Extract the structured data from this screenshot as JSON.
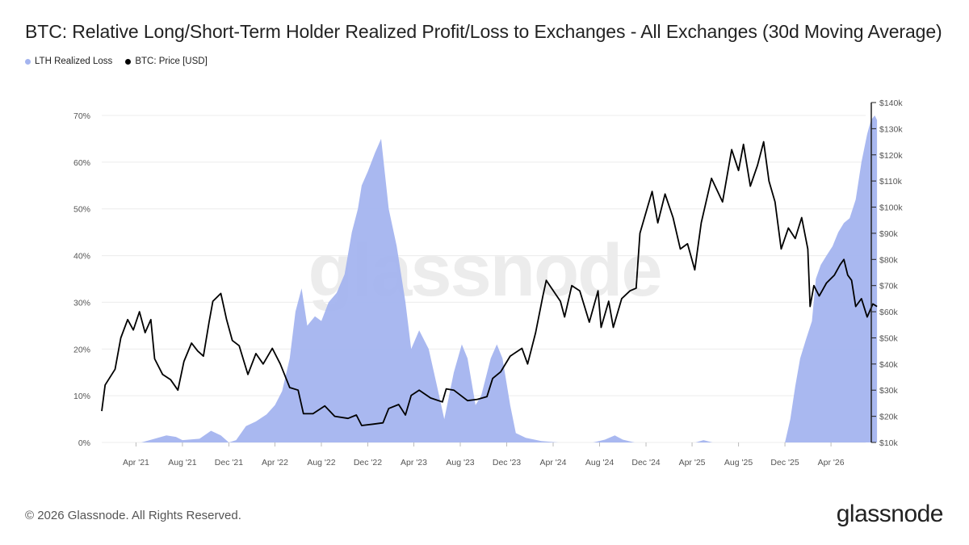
{
  "title": "BTC: Relative Long/Short-Term Holder Realized Profit/Loss to Exchanges - All Exchanges (30d Moving Average)",
  "footer": "© 2026 Glassnode. All Rights Reserved.",
  "brand": "glassnode",
  "watermark": "glassnode",
  "colors": {
    "loss_area": "#a4b4ef",
    "price_line": "#000000",
    "axis": "#222222"
  },
  "chart_data": {
    "type": "area",
    "legend": [
      {
        "name": "LTH Realized Loss",
        "color": "#a4b4ef",
        "marker": "dot"
      },
      {
        "name": "BTC: Price [USD]",
        "color": "#000000",
        "marker": "dot"
      }
    ],
    "legend_position": "top-left",
    "grid": true,
    "x_ticks": [
      "Apr '21",
      "Aug '21",
      "Dec '21",
      "Apr '22",
      "Aug '22",
      "Dec '22",
      "Apr '23",
      "Aug '23",
      "Dec '23",
      "Apr '24",
      "Aug '24",
      "Dec '24",
      "Apr '25",
      "Aug '25",
      "Dec '25",
      "Apr '26"
    ],
    "x_range": [
      "2021-01",
      "2026-07"
    ],
    "y_left": {
      "ticks": [
        "0%",
        "10%",
        "20%",
        "30%",
        "40%",
        "50%",
        "60%",
        "70%"
      ],
      "range": [
        0,
        70
      ],
      "unit": "%"
    },
    "y_right": {
      "ticks": [
        "$10k",
        "$20k",
        "$30k",
        "$40k",
        "$50k",
        "$60k",
        "$70k",
        "$80k",
        "$90k",
        "$100k",
        "$110k",
        "$120k",
        "$130k",
        "$140k"
      ],
      "range": [
        10000,
        140000
      ],
      "unit": "USD"
    },
    "series": [
      {
        "name": "LTH Realized Loss",
        "axis": "left",
        "kind": "area",
        "points": [
          [
            "2021-01-01",
            0
          ],
          [
            "2021-04-15",
            0
          ],
          [
            "2021-05-20",
            0.8
          ],
          [
            "2021-06-20",
            1.5
          ],
          [
            "2021-07-15",
            1.2
          ],
          [
            "2021-08-01",
            0.5
          ],
          [
            "2021-09-15",
            0.8
          ],
          [
            "2021-10-15",
            2.5
          ],
          [
            "2021-11-10",
            1.5
          ],
          [
            "2021-12-01",
            0
          ],
          [
            "2021-12-20",
            0.5
          ],
          [
            "2022-01-15",
            3.5
          ],
          [
            "2022-02-10",
            4.5
          ],
          [
            "2022-03-10",
            6
          ],
          [
            "2022-04-01",
            8
          ],
          [
            "2022-04-20",
            11
          ],
          [
            "2022-05-10",
            18
          ],
          [
            "2022-05-25",
            28
          ],
          [
            "2022-06-10",
            33
          ],
          [
            "2022-06-25",
            25
          ],
          [
            "2022-07-15",
            27
          ],
          [
            "2022-08-01",
            26
          ],
          [
            "2022-08-20",
            30
          ],
          [
            "2022-09-10",
            32
          ],
          [
            "2022-10-01",
            36
          ],
          [
            "2022-10-20",
            45
          ],
          [
            "2022-11-05",
            50
          ],
          [
            "2022-11-15",
            55
          ],
          [
            "2022-12-01",
            58
          ],
          [
            "2022-12-20",
            62
          ],
          [
            "2023-01-05",
            65
          ],
          [
            "2023-01-25",
            50
          ],
          [
            "2023-02-15",
            42
          ],
          [
            "2023-03-10",
            30
          ],
          [
            "2023-03-25",
            20
          ],
          [
            "2023-04-15",
            24
          ],
          [
            "2023-05-10",
            20
          ],
          [
            "2023-06-01",
            12
          ],
          [
            "2023-06-20",
            5
          ],
          [
            "2023-07-15",
            15
          ],
          [
            "2023-08-05",
            21
          ],
          [
            "2023-08-20",
            18
          ],
          [
            "2023-09-10",
            8
          ],
          [
            "2023-09-25",
            10
          ],
          [
            "2023-10-20",
            18
          ],
          [
            "2023-11-05",
            21
          ],
          [
            "2023-11-20",
            18
          ],
          [
            "2023-12-10",
            8
          ],
          [
            "2023-12-25",
            2
          ],
          [
            "2024-01-20",
            1
          ],
          [
            "2024-03-01",
            0.3
          ],
          [
            "2024-04-15",
            0
          ],
          [
            "2024-07-15",
            0
          ],
          [
            "2024-08-15",
            0.6
          ],
          [
            "2024-09-10",
            1.5
          ],
          [
            "2024-10-01",
            0.6
          ],
          [
            "2024-11-01",
            0
          ],
          [
            "2025-04-10",
            0
          ],
          [
            "2025-05-01",
            0.5
          ],
          [
            "2025-05-25",
            0
          ],
          [
            "2025-12-01",
            0
          ],
          [
            "2025-12-15",
            5
          ],
          [
            "2025-12-28",
            12
          ],
          [
            "2026-01-10",
            18
          ],
          [
            "2026-01-25",
            22
          ],
          [
            "2026-02-10",
            26
          ],
          [
            "2026-02-20",
            35
          ],
          [
            "2026-03-05",
            38
          ],
          [
            "2026-03-20",
            40
          ],
          [
            "2026-04-05",
            42
          ],
          [
            "2026-04-20",
            45
          ],
          [
            "2026-05-05",
            47
          ],
          [
            "2026-05-20",
            48
          ],
          [
            "2026-06-05",
            52
          ],
          [
            "2026-06-20",
            60
          ],
          [
            "2026-07-05",
            66
          ],
          [
            "2026-07-15",
            69
          ],
          [
            "2026-07-25",
            70
          ],
          [
            "2026-07-31",
            69
          ]
        ]
      },
      {
        "name": "BTC: Price [USD]",
        "axis": "right",
        "kind": "line",
        "points": [
          [
            "2021-01-01",
            22000
          ],
          [
            "2021-01-10",
            32000
          ],
          [
            "2021-02-05",
            38000
          ],
          [
            "2021-02-20",
            50000
          ],
          [
            "2021-03-10",
            57000
          ],
          [
            "2021-03-25",
            53000
          ],
          [
            "2021-04-10",
            60000
          ],
          [
            "2021-04-25",
            52000
          ],
          [
            "2021-05-10",
            57000
          ],
          [
            "2021-05-20",
            42000
          ],
          [
            "2021-06-10",
            36000
          ],
          [
            "2021-07-01",
            34000
          ],
          [
            "2021-07-20",
            30000
          ],
          [
            "2021-08-05",
            41000
          ],
          [
            "2021-08-25",
            48000
          ],
          [
            "2021-09-10",
            45000
          ],
          [
            "2021-09-25",
            43000
          ],
          [
            "2021-10-10",
            56000
          ],
          [
            "2021-10-20",
            64000
          ],
          [
            "2021-11-10",
            67000
          ],
          [
            "2021-11-25",
            57000
          ],
          [
            "2021-12-10",
            49000
          ],
          [
            "2021-12-28",
            47000
          ],
          [
            "2022-01-20",
            36000
          ],
          [
            "2022-02-10",
            44000
          ],
          [
            "2022-03-01",
            40000
          ],
          [
            "2022-03-25",
            46000
          ],
          [
            "2022-04-15",
            40000
          ],
          [
            "2022-05-10",
            31000
          ],
          [
            "2022-06-01",
            30000
          ],
          [
            "2022-06-15",
            21000
          ],
          [
            "2022-07-10",
            21000
          ],
          [
            "2022-08-10",
            24000
          ],
          [
            "2022-09-05",
            20000
          ],
          [
            "2022-10-10",
            19200
          ],
          [
            "2022-11-01",
            20500
          ],
          [
            "2022-11-15",
            16500
          ],
          [
            "2022-12-15",
            17000
          ],
          [
            "2023-01-10",
            17500
          ],
          [
            "2023-01-25",
            23000
          ],
          [
            "2023-02-20",
            24500
          ],
          [
            "2023-03-10",
            20500
          ],
          [
            "2023-03-25",
            28000
          ],
          [
            "2023-04-15",
            30000
          ],
          [
            "2023-05-15",
            27000
          ],
          [
            "2023-06-15",
            25500
          ],
          [
            "2023-06-25",
            30500
          ],
          [
            "2023-07-15",
            30000
          ],
          [
            "2023-08-20",
            26000
          ],
          [
            "2023-09-15",
            26500
          ],
          [
            "2023-10-10",
            27500
          ],
          [
            "2023-10-25",
            34500
          ],
          [
            "2023-11-15",
            37000
          ],
          [
            "2023-12-10",
            43000
          ],
          [
            "2024-01-10",
            46000
          ],
          [
            "2024-01-25",
            40000
          ],
          [
            "2024-02-15",
            52000
          ],
          [
            "2024-03-05",
            66000
          ],
          [
            "2024-03-14",
            72000
          ],
          [
            "2024-04-20",
            64000
          ],
          [
            "2024-05-01",
            58000
          ],
          [
            "2024-05-20",
            70000
          ],
          [
            "2024-06-10",
            68000
          ],
          [
            "2024-07-05",
            56000
          ],
          [
            "2024-07-28",
            68000
          ],
          [
            "2024-08-05",
            54000
          ],
          [
            "2024-08-25",
            64000
          ],
          [
            "2024-09-06",
            54000
          ],
          [
            "2024-09-28",
            65000
          ],
          [
            "2024-10-20",
            68000
          ],
          [
            "2024-11-05",
            69000
          ],
          [
            "2024-11-15",
            90000
          ],
          [
            "2024-12-05",
            100000
          ],
          [
            "2024-12-17",
            106000
          ],
          [
            "2025-01-01",
            94000
          ],
          [
            "2025-01-20",
            105000
          ],
          [
            "2025-02-10",
            96000
          ],
          [
            "2025-03-01",
            84000
          ],
          [
            "2025-03-20",
            86000
          ],
          [
            "2025-04-08",
            76000
          ],
          [
            "2025-04-25",
            94000
          ],
          [
            "2025-05-22",
            111000
          ],
          [
            "2025-06-20",
            102000
          ],
          [
            "2025-07-14",
            122000
          ],
          [
            "2025-08-01",
            114000
          ],
          [
            "2025-08-14",
            124000
          ],
          [
            "2025-09-01",
            108000
          ],
          [
            "2025-09-20",
            116000
          ],
          [
            "2025-10-06",
            125000
          ],
          [
            "2025-10-20",
            110000
          ],
          [
            "2025-11-05",
            102000
          ],
          [
            "2025-11-21",
            84000
          ],
          [
            "2025-12-10",
            92000
          ],
          [
            "2025-12-28",
            88000
          ],
          [
            "2026-01-14",
            96000
          ],
          [
            "2026-01-30",
            84000
          ],
          [
            "2026-02-05",
            62000
          ],
          [
            "2026-02-15",
            70000
          ],
          [
            "2026-03-01",
            66000
          ],
          [
            "2026-03-20",
            71000
          ],
          [
            "2026-04-10",
            74000
          ],
          [
            "2026-04-25",
            78000
          ],
          [
            "2026-05-05",
            80000
          ],
          [
            "2026-05-15",
            74000
          ],
          [
            "2026-05-25",
            72000
          ],
          [
            "2026-06-05",
            62000
          ],
          [
            "2026-06-20",
            65000
          ],
          [
            "2026-07-05",
            58000
          ],
          [
            "2026-07-20",
            63000
          ],
          [
            "2026-07-31",
            62000
          ]
        ]
      }
    ]
  }
}
